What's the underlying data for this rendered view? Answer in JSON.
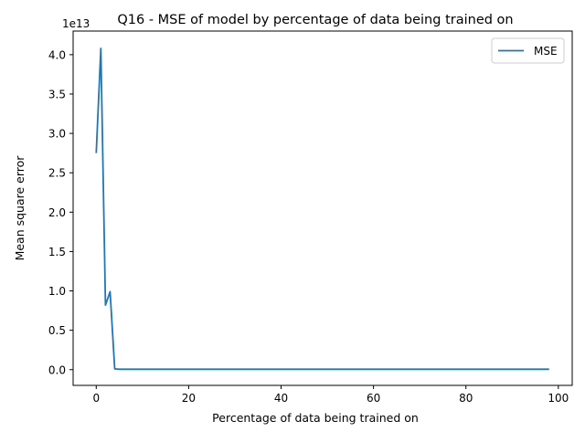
{
  "chart_data": {
    "type": "line",
    "title": "Q16 - MSE of model by percentage of data being trained on",
    "xlabel": "Percentage of data being trained on",
    "ylabel": "Mean square error",
    "y_offset_label": "1e13",
    "xlim": [
      -5,
      103
    ],
    "ylim": [
      -0.2,
      4.3
    ],
    "y_scale_note": "values in units of 1e13",
    "x_ticks": [
      0,
      20,
      40,
      60,
      80,
      100
    ],
    "x_tick_labels": [
      "0",
      "20",
      "40",
      "60",
      "80",
      "100"
    ],
    "y_ticks": [
      0,
      0.5,
      1,
      1.5,
      2,
      2.5,
      3,
      3.5,
      4
    ],
    "y_tick_labels": [
      "0.0",
      "0.5",
      "1.0",
      "1.5",
      "2.0",
      "2.5",
      "3.0",
      "3.5",
      "4.0"
    ],
    "grid": false,
    "legend_position": "upper right",
    "series": [
      {
        "name": "MSE",
        "color": "#1f77b4",
        "x": [
          0,
          1,
          2,
          3,
          4,
          5,
          10,
          20,
          30,
          40,
          50,
          60,
          70,
          80,
          90,
          98
        ],
        "y": [
          2.75,
          4.08,
          0.82,
          0.99,
          0.01,
          0.005,
          0.005,
          0.005,
          0.005,
          0.005,
          0.005,
          0.005,
          0.005,
          0.005,
          0.005,
          0.005
        ]
      }
    ]
  }
}
